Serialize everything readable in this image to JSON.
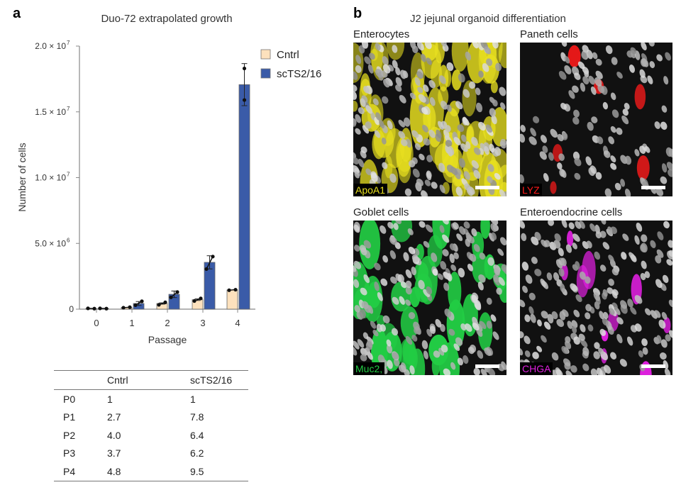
{
  "panel_a": {
    "letter": "a",
    "chart_data": {
      "type": "bar",
      "title": "Duo-72 extrapolated growth",
      "xlabel": "Passage",
      "ylabel": "Number of cells",
      "categories": [
        "0",
        "1",
        "2",
        "3",
        "4"
      ],
      "ylim": [
        0,
        20000000
      ],
      "yticks": [
        {
          "value": 0,
          "label": "0"
        },
        {
          "value": 5000000,
          "label": "5.0 × 10",
          "exp": "6"
        },
        {
          "value": 10000000,
          "label": "1.0 × 10",
          "exp": "7"
        },
        {
          "value": 15000000,
          "label": "1.5 × 10",
          "exp": "7"
        },
        {
          "value": 20000000,
          "label": "2.0 × 10",
          "exp": "7"
        }
      ],
      "legend_position": "top-right",
      "series": [
        {
          "name": "Cntrl",
          "color": "#fde1bd",
          "values": [
            50000,
            130000,
            430000,
            720000,
            1460000
          ],
          "error": [
            0,
            0,
            50000,
            60000,
            0
          ],
          "points": [
            [
              60000,
              40000
            ],
            [
              110000,
              150000
            ],
            [
              330000,
              520000
            ],
            [
              620000,
              820000
            ],
            [
              1440000,
              1480000
            ]
          ]
        },
        {
          "name": "scTS2/16",
          "color": "#3a5ba8",
          "values": [
            50000,
            430000,
            1130000,
            3560000,
            17070000
          ],
          "error": [
            0,
            150000,
            250000,
            500000,
            1600000
          ],
          "points": [
            [
              60000,
              40000
            ],
            [
              300000,
              600000
            ],
            [
              900000,
              1300000
            ],
            [
              3050000,
              4000000
            ],
            [
              15900000,
              18300000
            ]
          ]
        }
      ]
    },
    "table": {
      "headers": [
        "",
        "Cntrl",
        "scTS2/16"
      ],
      "rows": [
        [
          "P0",
          "1",
          "1"
        ],
        [
          "P1",
          "2.7",
          "7.8"
        ],
        [
          "P2",
          "4.0",
          "6.4"
        ],
        [
          "P3",
          "3.7",
          "6.2"
        ],
        [
          "P4",
          "4.8",
          "9.5"
        ]
      ]
    }
  },
  "panel_b": {
    "letter": "b",
    "title": "J2 jejunal organoid differentiation",
    "images": [
      {
        "label": "Enterocytes",
        "stain": "ApoA1",
        "color": "#e8e020"
      },
      {
        "label": "Paneth cells",
        "stain": "LYZ",
        "color": "#ff1a1a"
      },
      {
        "label": "Goblet cells",
        "stain": "Muc2,",
        "color": "#22cc44"
      },
      {
        "label": "Enteroendocrine cells",
        "stain": "CHGA",
        "color": "#e020e0"
      }
    ]
  }
}
